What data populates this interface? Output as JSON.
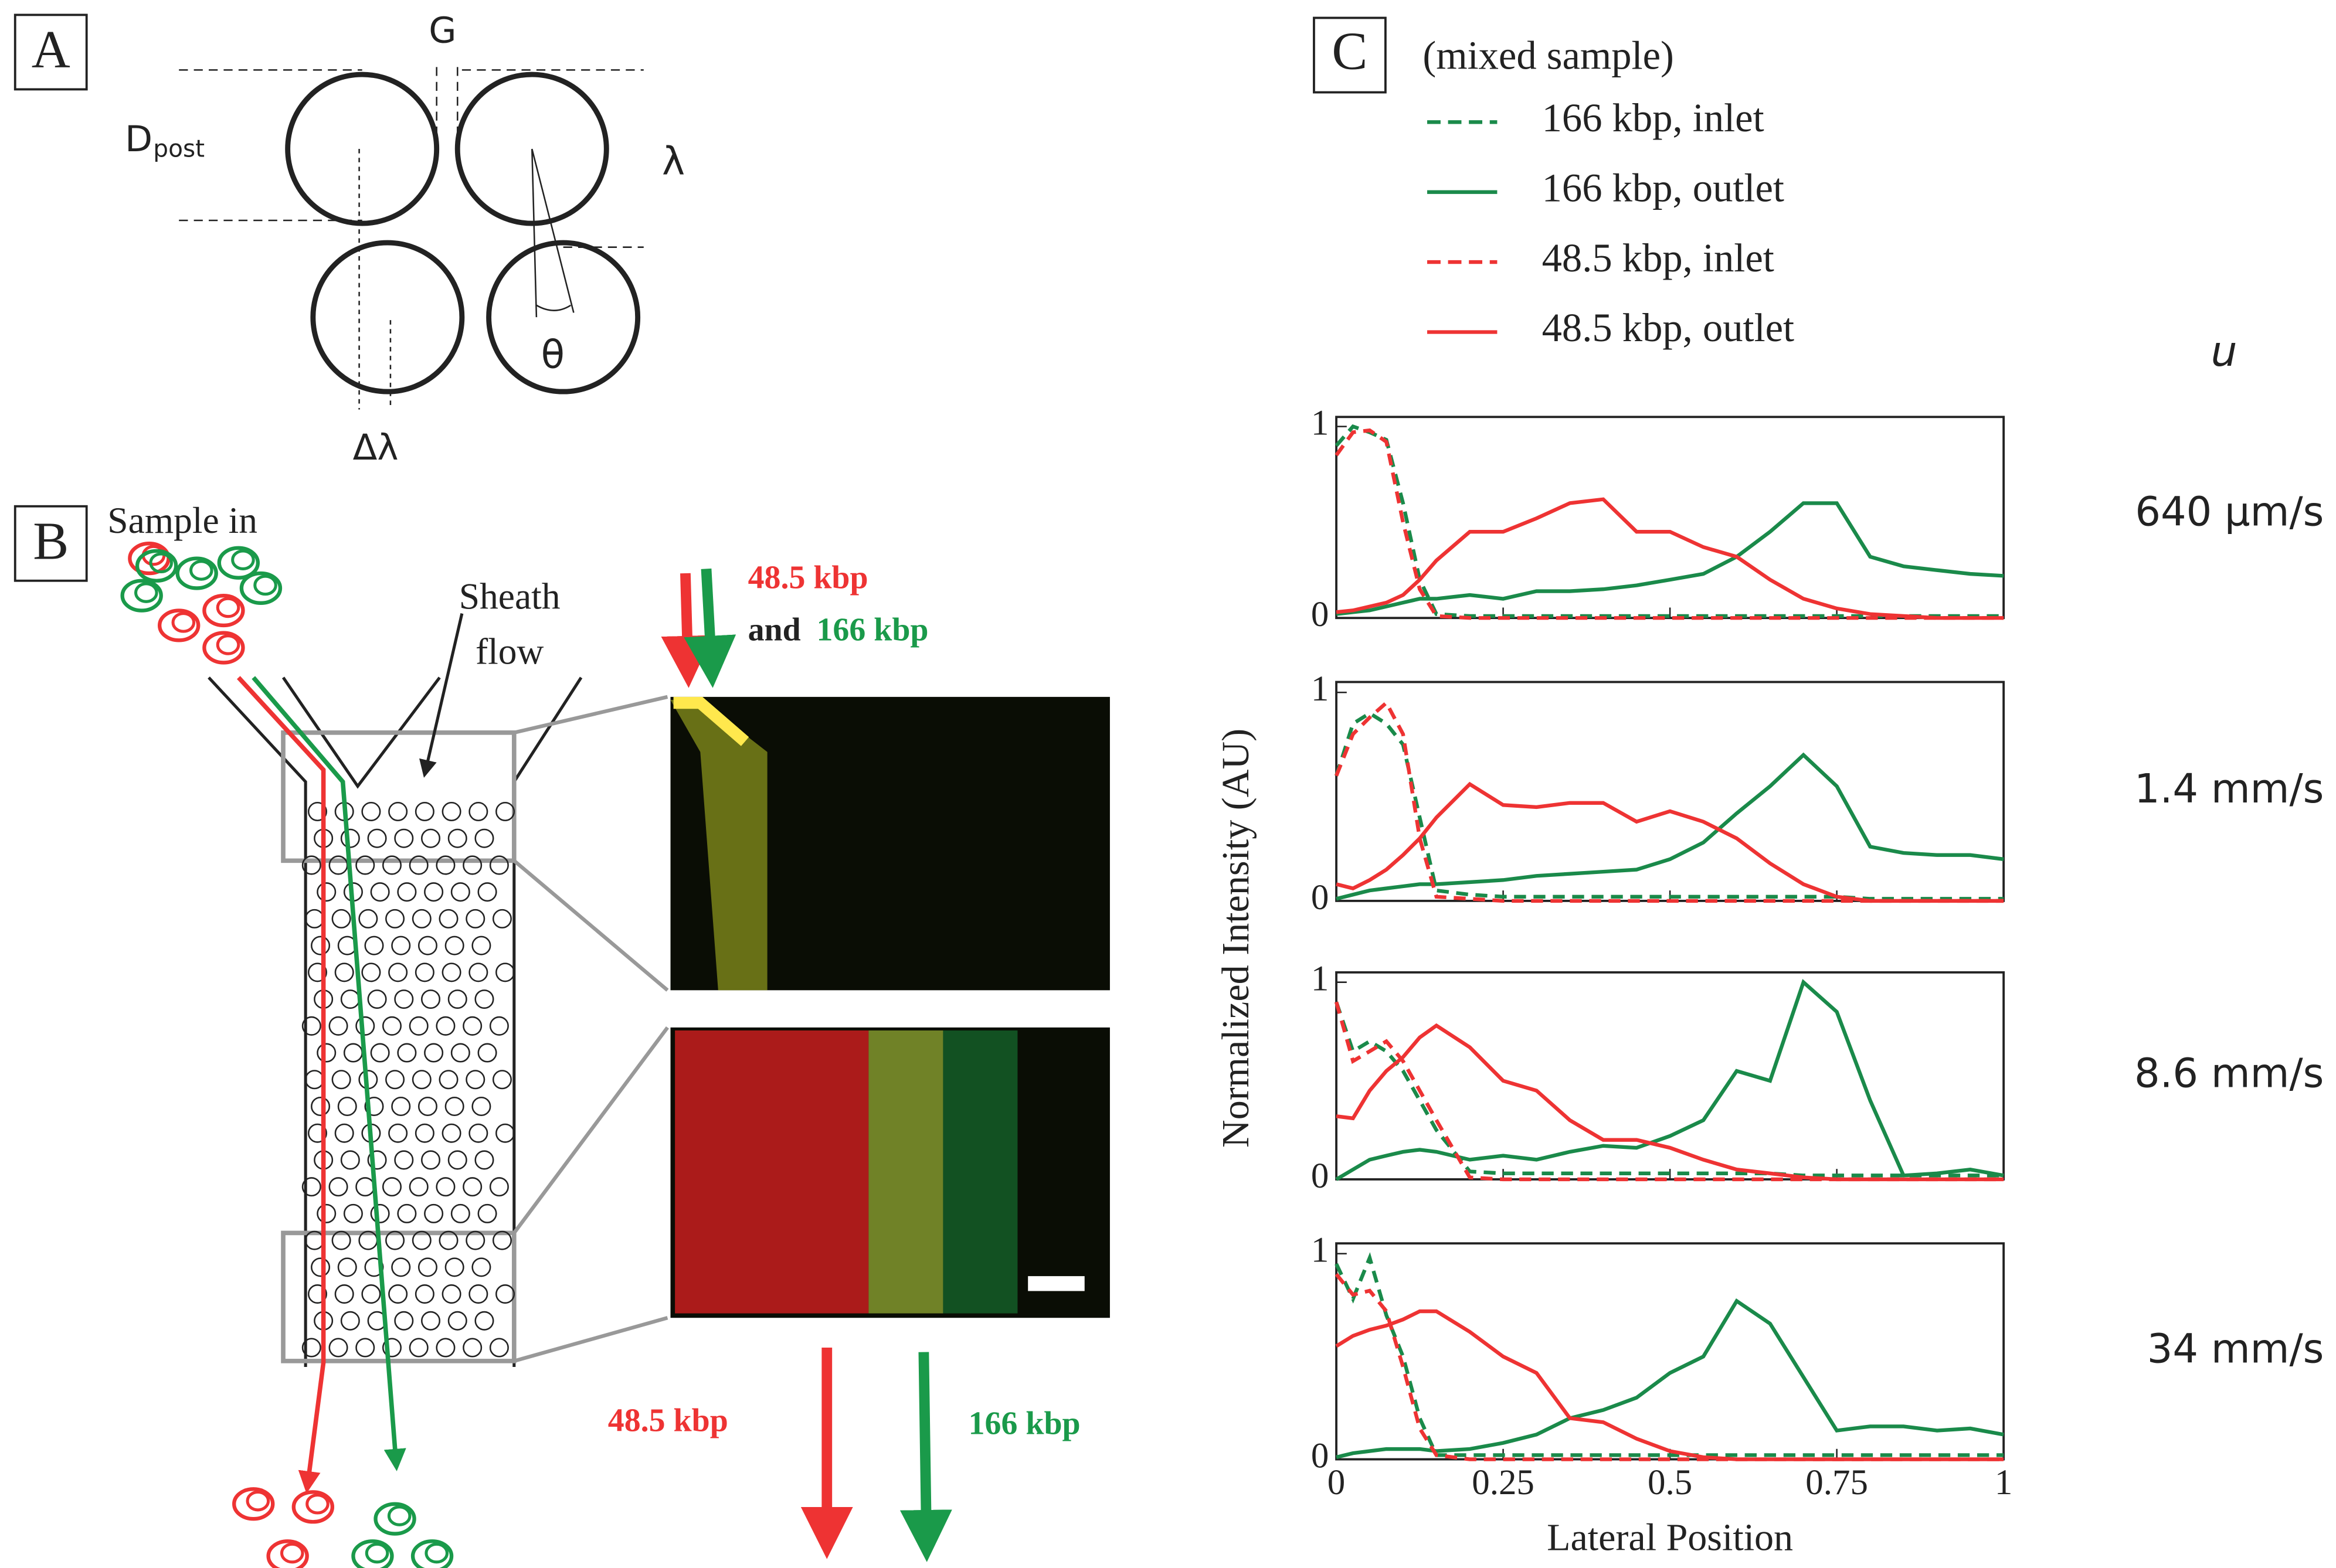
{
  "panels": {
    "A": {
      "label": "A",
      "gap": "G",
      "diameter": "D",
      "diameter_sub": "post",
      "period": "λ",
      "angle": "θ",
      "shift": "Δλ"
    },
    "B": {
      "label": "B",
      "sample_in": "Sample in",
      "sheath": [
        "Sheath",
        "flow"
      ],
      "top_red": "48.5 kbp",
      "top_and": "and",
      "top_green": "166 kbp",
      "out_red": "48.5 kbp",
      "out_green": "166 kbp"
    },
    "C": {
      "label": "C",
      "speed_header": "u",
      "ylabel": "Normalized Intensity (AU)",
      "xlabel": "Lateral Position"
    }
  },
  "legend": {
    "title": "(mixed sample)",
    "entries": [
      {
        "name": "166 kbp, inlet",
        "color": "#1a8a4a",
        "dash": true
      },
      {
        "name": "166 kbp, outlet",
        "color": "#1a8a4a",
        "dash": false
      },
      {
        "name": "48.5 kbp, inlet",
        "color": "#ee3333",
        "dash": true
      },
      {
        "name": "48.5 kbp, outlet",
        "color": "#ee3333",
        "dash": false
      }
    ]
  },
  "chart_data": [
    {
      "type": "line",
      "label": "640 µm/s",
      "xlim": [
        0,
        1
      ],
      "ylim": [
        0,
        1.05
      ],
      "xticks": [
        0,
        0.25,
        0.5,
        0.75,
        1
      ],
      "yticks": [
        0,
        1
      ],
      "x": [
        0,
        0.025,
        0.05,
        0.075,
        0.1,
        0.125,
        0.15,
        0.2,
        0.25,
        0.3,
        0.35,
        0.4,
        0.45,
        0.5,
        0.55,
        0.6,
        0.65,
        0.7,
        0.75,
        0.8,
        0.85,
        0.9,
        0.95,
        1
      ],
      "series": [
        {
          "values": [
            0.9,
            1.0,
            0.97,
            0.93,
            0.6,
            0.2,
            0.02,
            0.01,
            0.01,
            0.01,
            0.01,
            0.01,
            0.01,
            0.01,
            0.01,
            0.01,
            0.01,
            0.01,
            0.01,
            0.01,
            0.01,
            0.01,
            0.01,
            0.01
          ]
        },
        {
          "values": [
            0.02,
            0.03,
            0.04,
            0.06,
            0.08,
            0.1,
            0.1,
            0.12,
            0.1,
            0.14,
            0.14,
            0.15,
            0.17,
            0.2,
            0.23,
            0.32,
            0.45,
            0.6,
            0.6,
            0.32,
            0.27,
            0.25,
            0.23,
            0.22
          ]
        },
        {
          "values": [
            0.85,
            0.97,
            0.98,
            0.92,
            0.5,
            0.15,
            0.01,
            0,
            0,
            0,
            0,
            0,
            0,
            0,
            0,
            0,
            0,
            0,
            0,
            0,
            0,
            0,
            0,
            0
          ]
        },
        {
          "values": [
            0.03,
            0.04,
            0.06,
            0.08,
            0.12,
            0.2,
            0.3,
            0.45,
            0.45,
            0.52,
            0.6,
            0.62,
            0.45,
            0.45,
            0.37,
            0.32,
            0.2,
            0.1,
            0.05,
            0.02,
            0.01,
            0,
            0,
            0
          ]
        }
      ]
    },
    {
      "type": "line",
      "label": "1.4 mm/s",
      "xlim": [
        0,
        1
      ],
      "ylim": [
        0,
        1.05
      ],
      "xticks": [
        0,
        0.25,
        0.5,
        0.75,
        1
      ],
      "yticks": [
        0,
        1
      ],
      "x": [
        0,
        0.025,
        0.05,
        0.075,
        0.1,
        0.125,
        0.15,
        0.2,
        0.25,
        0.3,
        0.35,
        0.4,
        0.45,
        0.5,
        0.55,
        0.6,
        0.65,
        0.7,
        0.75,
        0.8,
        0.85,
        0.9,
        0.95,
        1
      ],
      "series": [
        {
          "values": [
            0.6,
            0.85,
            0.9,
            0.85,
            0.75,
            0.4,
            0.05,
            0.03,
            0.02,
            0.02,
            0.02,
            0.02,
            0.02,
            0.02,
            0.02,
            0.02,
            0.02,
            0.02,
            0.02,
            0.01,
            0.01,
            0.01,
            0.01,
            0.01
          ]
        },
        {
          "values": [
            0.01,
            0.03,
            0.05,
            0.06,
            0.07,
            0.08,
            0.08,
            0.09,
            0.1,
            0.12,
            0.13,
            0.14,
            0.15,
            0.2,
            0.28,
            0.42,
            0.55,
            0.7,
            0.55,
            0.26,
            0.23,
            0.22,
            0.22,
            0.2
          ]
        },
        {
          "values": [
            0.6,
            0.8,
            0.88,
            0.95,
            0.8,
            0.3,
            0.02,
            0.01,
            0,
            0,
            0,
            0,
            0,
            0,
            0,
            0,
            0,
            0,
            0,
            0,
            0,
            0,
            0,
            0
          ]
        },
        {
          "values": [
            0.08,
            0.06,
            0.1,
            0.15,
            0.22,
            0.3,
            0.4,
            0.56,
            0.46,
            0.45,
            0.47,
            0.47,
            0.38,
            0.43,
            0.38,
            0.3,
            0.18,
            0.08,
            0.02,
            0,
            0,
            0,
            0,
            0
          ]
        }
      ]
    },
    {
      "type": "line",
      "label": "8.6 mm/s",
      "xlim": [
        0,
        1
      ],
      "ylim": [
        0,
        1.05
      ],
      "xticks": [
        0,
        0.25,
        0.5,
        0.75,
        1
      ],
      "yticks": [
        0,
        1
      ],
      "x": [
        0,
        0.025,
        0.05,
        0.075,
        0.1,
        0.125,
        0.15,
        0.2,
        0.25,
        0.3,
        0.35,
        0.4,
        0.45,
        0.5,
        0.55,
        0.6,
        0.65,
        0.7,
        0.75,
        0.8,
        0.85,
        0.9,
        0.95,
        1
      ],
      "series": [
        {
          "values": [
            0.9,
            0.65,
            0.7,
            0.65,
            0.55,
            0.4,
            0.25,
            0.04,
            0.03,
            0.03,
            0.03,
            0.03,
            0.03,
            0.03,
            0.03,
            0.03,
            0.03,
            0.02,
            0.02,
            0.02,
            0.02,
            0.02,
            0.02,
            0.02
          ]
        },
        {
          "values": [
            0,
            0.05,
            0.1,
            0.12,
            0.14,
            0.15,
            0.14,
            0.1,
            0.12,
            0.1,
            0.14,
            0.17,
            0.16,
            0.22,
            0.3,
            0.55,
            0.5,
            1.0,
            0.85,
            0.4,
            0.02,
            0.03,
            0.05,
            0.02
          ]
        },
        {
          "values": [
            0.9,
            0.6,
            0.65,
            0.7,
            0.6,
            0.45,
            0.3,
            0.01,
            0,
            0,
            0,
            0,
            0,
            0,
            0,
            0,
            0,
            0,
            0,
            0,
            0,
            0,
            0,
            0
          ]
        },
        {
          "values": [
            0.32,
            0.31,
            0.45,
            0.55,
            0.62,
            0.72,
            0.78,
            0.67,
            0.5,
            0.45,
            0.3,
            0.2,
            0.2,
            0.16,
            0.1,
            0.05,
            0.03,
            0.01,
            0,
            0,
            0,
            0,
            0,
            0
          ]
        }
      ]
    },
    {
      "type": "line",
      "label": "34 mm/s",
      "xlim": [
        0,
        1
      ],
      "ylim": [
        0,
        1.05
      ],
      "xticks": [
        0,
        {
          "value": 0.25,
          "label": "0.25"
        },
        {
          "value": 0.5,
          "label": "0.5"
        },
        {
          "value": 0.75,
          "label": "0.75"
        },
        1
      ],
      "yticks": [
        0,
        1
      ],
      "show_xtick_labels": true,
      "x": [
        0,
        0.025,
        0.05,
        0.075,
        0.1,
        0.125,
        0.15,
        0.2,
        0.25,
        0.3,
        0.35,
        0.4,
        0.45,
        0.5,
        0.55,
        0.6,
        0.65,
        0.7,
        0.75,
        0.8,
        0.85,
        0.9,
        0.95,
        1
      ],
      "series": [
        {
          "values": [
            0.95,
            0.78,
            0.98,
            0.7,
            0.5,
            0.2,
            0.02,
            0.02,
            0.02,
            0.02,
            0.02,
            0.02,
            0.02,
            0.02,
            0.02,
            0.02,
            0.02,
            0.02,
            0.02,
            0.02,
            0.02,
            0.02,
            0.02,
            0.02
          ]
        },
        {
          "values": [
            0.01,
            0.03,
            0.04,
            0.05,
            0.05,
            0.05,
            0.04,
            0.05,
            0.08,
            0.12,
            0.2,
            0.24,
            0.3,
            0.42,
            0.5,
            0.77,
            0.66,
            0.4,
            0.14,
            0.16,
            0.16,
            0.14,
            0.15,
            0.12
          ]
        },
        {
          "values": [
            0.9,
            0.8,
            0.82,
            0.72,
            0.45,
            0.15,
            0.02,
            0,
            0,
            0,
            0,
            0,
            0,
            0,
            0,
            0,
            0,
            0,
            0,
            0,
            0,
            0,
            0,
            0
          ]
        },
        {
          "values": [
            0.55,
            0.6,
            0.63,
            0.65,
            0.68,
            0.72,
            0.72,
            0.62,
            0.5,
            0.42,
            0.2,
            0.18,
            0.1,
            0.04,
            0.01,
            0,
            0,
            0,
            0,
            0,
            0,
            0,
            0,
            0
          ]
        }
      ]
    }
  ]
}
